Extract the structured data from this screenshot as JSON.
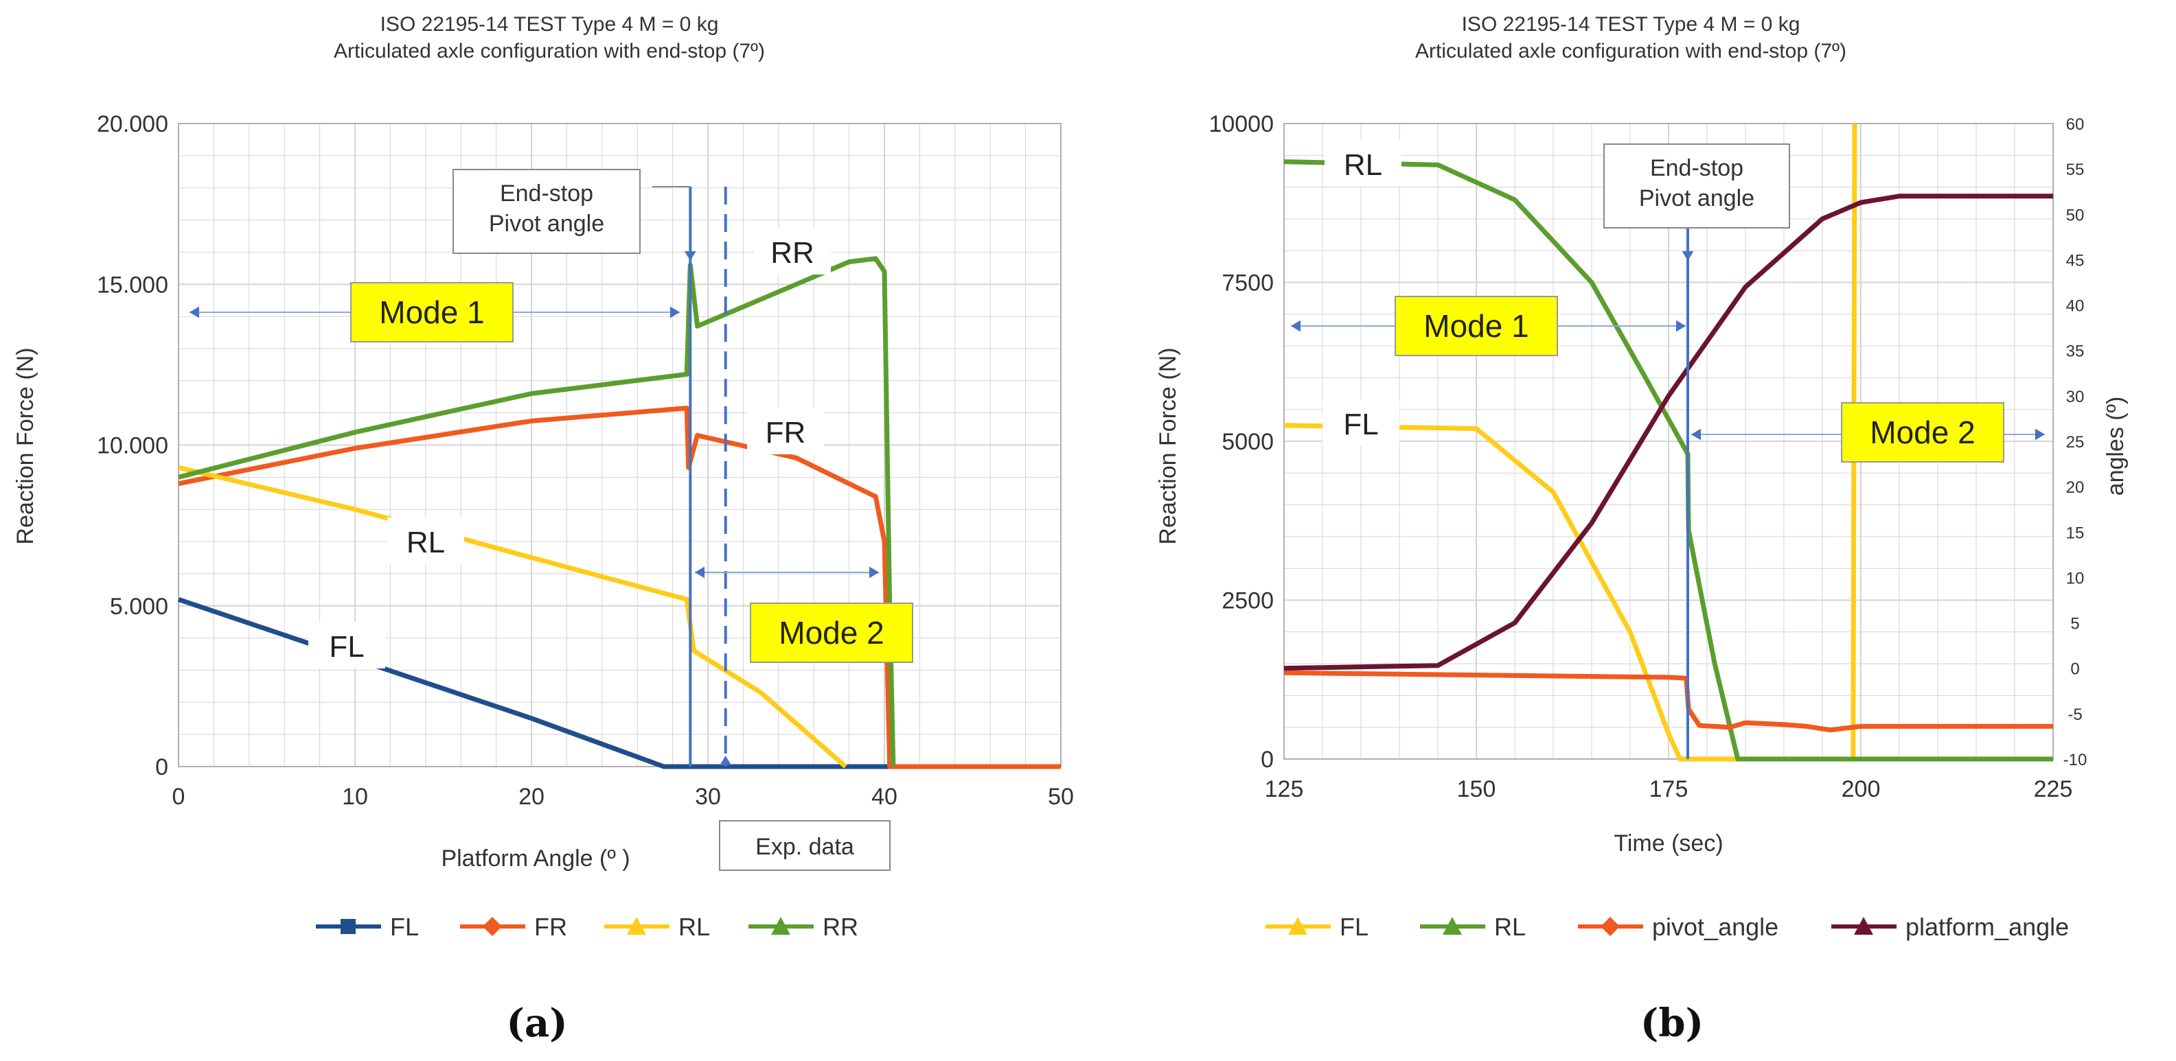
{
  "colors": {
    "FL": "#1f4e8c",
    "FR": "#f05a1e",
    "RL": "#ffcc1a",
    "RR": "#5c9e2e",
    "platform": "#6b1431",
    "pivot": "#f05a1e",
    "marker": "#4472c4",
    "grid": "#cfcfcf",
    "mode_box": "#ffff00"
  },
  "chart_data": [
    {
      "id": "a",
      "type": "line",
      "panel_label": "(a)",
      "title": "ISO 22195-14   TEST Type 4   M = 0 kg",
      "subtitle": "Articulated axle configuration with end-stop (7º)",
      "xlabel": "Platform Angle (º )",
      "ylabel": "Reaction Force (N)",
      "xlim": [
        0,
        50
      ],
      "ylim": [
        0,
        20000
      ],
      "xticks": [
        0,
        10,
        20,
        30,
        40,
        50
      ],
      "yticks": [
        0,
        5000,
        10000,
        15000,
        20000
      ],
      "ytick_labels": [
        "0",
        "5.000",
        "10.000",
        "15.000",
        "20.000"
      ],
      "xtick_labels": [
        "0",
        "10",
        "20",
        "30",
        "40",
        "50"
      ],
      "grid": true,
      "series": [
        {
          "name": "FL",
          "color": "#1f4e8c",
          "points": [
            [
              0,
              5200
            ],
            [
              10,
              3350
            ],
            [
              20,
              1500
            ],
            [
              27.5,
              0
            ],
            [
              50,
              0
            ]
          ]
        },
        {
          "name": "FR",
          "color": "#f05a1e",
          "points": [
            [
              0,
              8800
            ],
            [
              10,
              9900
            ],
            [
              20,
              10750
            ],
            [
              28.8,
              11150
            ],
            [
              28.9,
              9300
            ],
            [
              29.4,
              10300
            ],
            [
              35,
              9600
            ],
            [
              39.5,
              8400
            ],
            [
              40,
              7000
            ],
            [
              40.3,
              0
            ],
            [
              50,
              0
            ]
          ]
        },
        {
          "name": "RL",
          "color": "#ffcc1a",
          "points": [
            [
              0,
              9300
            ],
            [
              10,
              8000
            ],
            [
              20,
              6500
            ],
            [
              28.8,
              5200
            ],
            [
              29.2,
              3600
            ],
            [
              33,
              2300
            ],
            [
              37.8,
              0
            ]
          ]
        },
        {
          "name": "RR",
          "color": "#5c9e2e",
          "points": [
            [
              0,
              9000
            ],
            [
              10,
              10400
            ],
            [
              20,
              11600
            ],
            [
              28.8,
              12200
            ],
            [
              29.0,
              15600
            ],
            [
              29.4,
              13700
            ],
            [
              32,
              14300
            ],
            [
              35,
              15000
            ],
            [
              38,
              15700
            ],
            [
              39.5,
              15800
            ],
            [
              40.0,
              15400
            ],
            [
              40.3,
              5000
            ],
            [
              40.5,
              0
            ]
          ]
        }
      ],
      "annotations": {
        "end_stop": "End-stop\nPivot angle",
        "end_stop_lines": [
          "End-stop",
          "Pivot angle"
        ],
        "end_stop_x": 29,
        "exp_data": "Exp. data",
        "exp_data_x": 31,
        "mode1": "Mode 1",
        "mode2": "Mode 2",
        "curve_labels": [
          "RR",
          "FR",
          "RL",
          "FL"
        ]
      },
      "legend": [
        "FL",
        "FR",
        "RL",
        "RR"
      ],
      "legend_position": "bottom"
    },
    {
      "id": "b",
      "type": "line",
      "panel_label": "(b)",
      "title": "ISO 22195-14   TEST Type 4   M = 0 kg",
      "subtitle": "Articulated axle configuration with end-stop (7º)",
      "xlabel": "Time (sec)",
      "ylabel": "Reaction Force (N)",
      "y2label": "angles (º)",
      "xlim": [
        125,
        225
      ],
      "ylim": [
        0,
        10000
      ],
      "y2lim": [
        -10,
        60
      ],
      "xticks": [
        125,
        150,
        175,
        200,
        225
      ],
      "yticks": [
        0,
        2500,
        5000,
        7500,
        10000
      ],
      "y2ticks": [
        -10,
        -5,
        0,
        5,
        10,
        15,
        20,
        25,
        30,
        35,
        40,
        45,
        50,
        55,
        60
      ],
      "xtick_labels": [
        "125",
        "150",
        "175",
        "200",
        "225"
      ],
      "ytick_labels": [
        "0",
        "2500",
        "5000",
        "7500",
        "10000"
      ],
      "y2tick_labels": [
        "-10",
        "-5",
        "0",
        "5",
        "10",
        "15",
        "20",
        "25",
        "30",
        "35",
        "40",
        "45",
        "50",
        "55",
        "60"
      ],
      "grid": true,
      "series": [
        {
          "name": "FL",
          "color": "#ffcc1a",
          "axis": "left",
          "points": [
            [
              125,
              5250
            ],
            [
              150,
              5200
            ],
            [
              160,
              4200
            ],
            [
              170,
              2000
            ],
            [
              175,
              400
            ],
            [
              176.5,
              0
            ],
            [
              199,
              0
            ],
            [
              199.2,
              10000
            ]
          ]
        },
        {
          "name": "RL",
          "color": "#5c9e2e",
          "axis": "left",
          "points": [
            [
              125,
              9400
            ],
            [
              145,
              9350
            ],
            [
              155,
              8800
            ],
            [
              165,
              7500
            ],
            [
              172,
              6000
            ],
            [
              177.5,
              4800
            ],
            [
              177.6,
              3600
            ],
            [
              181,
              1500
            ],
            [
              184,
              0
            ],
            [
              225,
              0
            ]
          ]
        },
        {
          "name": "pivot_angle",
          "color": "#f05a1e",
          "axis": "right",
          "points": [
            [
              125,
              -0.5
            ],
            [
              175,
              -1.0
            ],
            [
              177.3,
              -1.1
            ],
            [
              177.6,
              -4.5
            ],
            [
              179,
              -6.3
            ],
            [
              183,
              -6.5
            ],
            [
              185,
              -6.0
            ],
            [
              190,
              -6.2
            ],
            [
              193,
              -6.4
            ],
            [
              196,
              -6.8
            ],
            [
              198,
              -6.6
            ],
            [
              200,
              -6.4
            ],
            [
              225,
              -6.4
            ]
          ]
        },
        {
          "name": "platform_angle",
          "color": "#6b1431",
          "axis": "right",
          "points": [
            [
              125,
              0
            ],
            [
              145,
              0.3
            ],
            [
              155,
              5
            ],
            [
              165,
              16
            ],
            [
              175,
              30
            ],
            [
              185,
              42
            ],
            [
              195,
              49.5
            ],
            [
              200,
              51.3
            ],
            [
              205,
              52
            ],
            [
              225,
              52
            ]
          ]
        }
      ],
      "annotations": {
        "end_stop": "End-stop\nPivot angle",
        "end_stop_lines": [
          "End-stop",
          "Pivot angle"
        ],
        "end_stop_x": 177.5,
        "mode1": "Mode 1",
        "mode2": "Mode 2",
        "curve_labels": [
          "RL",
          "FL"
        ]
      },
      "legend": [
        "FL",
        "RL",
        "pivot_angle",
        "platform_angle"
      ],
      "legend_position": "bottom"
    }
  ]
}
